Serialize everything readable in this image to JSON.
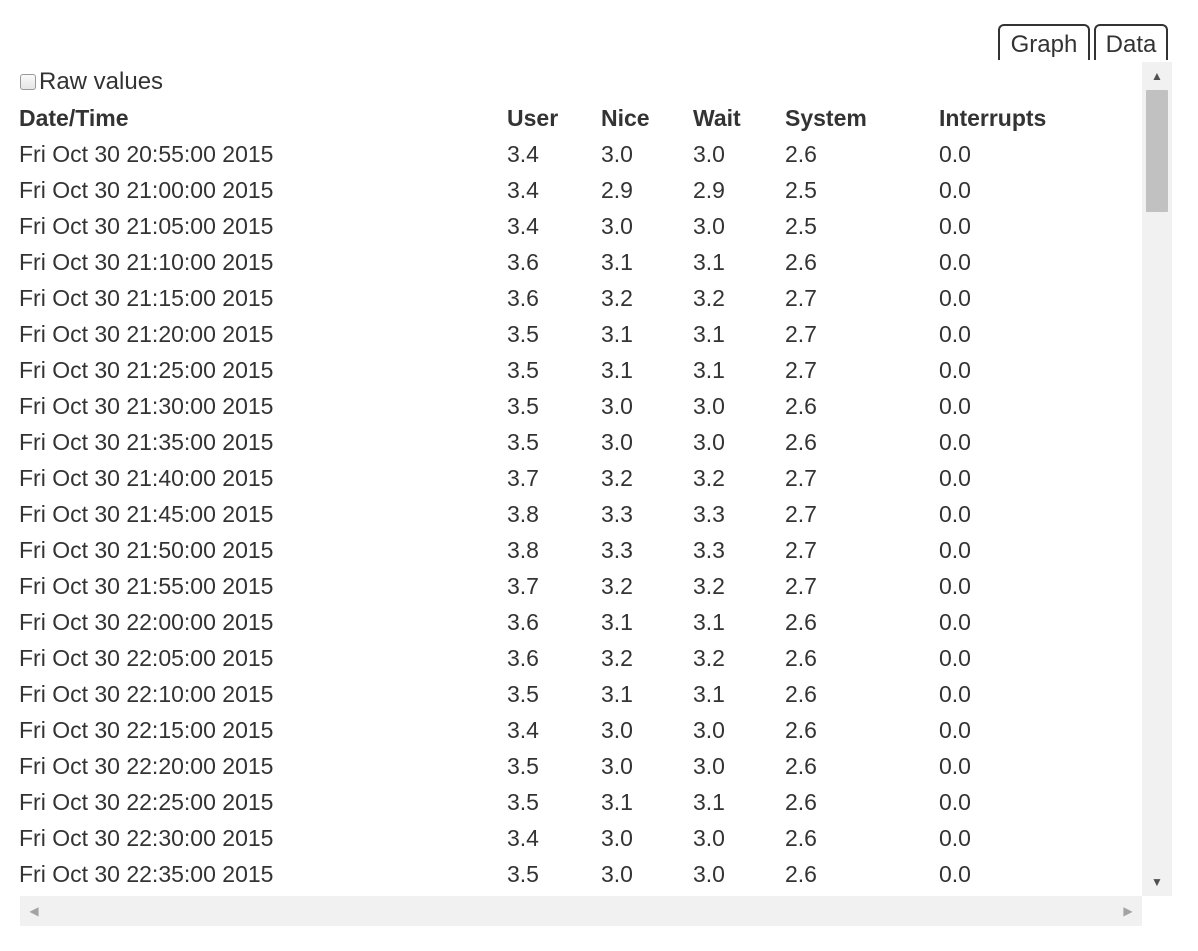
{
  "tabs": {
    "graph_label": "Graph",
    "data_label": "Data"
  },
  "raw_values": {
    "label": "Raw values",
    "checked": false
  },
  "table": {
    "headers": [
      "Date/Time",
      "User",
      "Nice",
      "Wait",
      "System",
      "Interrupts"
    ],
    "rows": [
      [
        "Fri Oct 30 20:55:00 2015",
        "3.4",
        "3.0",
        "3.0",
        "2.6",
        "0.0"
      ],
      [
        "Fri Oct 30 21:00:00 2015",
        "3.4",
        "2.9",
        "2.9",
        "2.5",
        "0.0"
      ],
      [
        "Fri Oct 30 21:05:00 2015",
        "3.4",
        "3.0",
        "3.0",
        "2.5",
        "0.0"
      ],
      [
        "Fri Oct 30 21:10:00 2015",
        "3.6",
        "3.1",
        "3.1",
        "2.6",
        "0.0"
      ],
      [
        "Fri Oct 30 21:15:00 2015",
        "3.6",
        "3.2",
        "3.2",
        "2.7",
        "0.0"
      ],
      [
        "Fri Oct 30 21:20:00 2015",
        "3.5",
        "3.1",
        "3.1",
        "2.7",
        "0.0"
      ],
      [
        "Fri Oct 30 21:25:00 2015",
        "3.5",
        "3.1",
        "3.1",
        "2.7",
        "0.0"
      ],
      [
        "Fri Oct 30 21:30:00 2015",
        "3.5",
        "3.0",
        "3.0",
        "2.6",
        "0.0"
      ],
      [
        "Fri Oct 30 21:35:00 2015",
        "3.5",
        "3.0",
        "3.0",
        "2.6",
        "0.0"
      ],
      [
        "Fri Oct 30 21:40:00 2015",
        "3.7",
        "3.2",
        "3.2",
        "2.7",
        "0.0"
      ],
      [
        "Fri Oct 30 21:45:00 2015",
        "3.8",
        "3.3",
        "3.3",
        "2.7",
        "0.0"
      ],
      [
        "Fri Oct 30 21:50:00 2015",
        "3.8",
        "3.3",
        "3.3",
        "2.7",
        "0.0"
      ],
      [
        "Fri Oct 30 21:55:00 2015",
        "3.7",
        "3.2",
        "3.2",
        "2.7",
        "0.0"
      ],
      [
        "Fri Oct 30 22:00:00 2015",
        "3.6",
        "3.1",
        "3.1",
        "2.6",
        "0.0"
      ],
      [
        "Fri Oct 30 22:05:00 2015",
        "3.6",
        "3.2",
        "3.2",
        "2.6",
        "0.0"
      ],
      [
        "Fri Oct 30 22:10:00 2015",
        "3.5",
        "3.1",
        "3.1",
        "2.6",
        "0.0"
      ],
      [
        "Fri Oct 30 22:15:00 2015",
        "3.4",
        "3.0",
        "3.0",
        "2.6",
        "0.0"
      ],
      [
        "Fri Oct 30 22:20:00 2015",
        "3.5",
        "3.0",
        "3.0",
        "2.6",
        "0.0"
      ],
      [
        "Fri Oct 30 22:25:00 2015",
        "3.5",
        "3.1",
        "3.1",
        "2.6",
        "0.0"
      ],
      [
        "Fri Oct 30 22:30:00 2015",
        "3.4",
        "3.0",
        "3.0",
        "2.6",
        "0.0"
      ],
      [
        "Fri Oct 30 22:35:00 2015",
        "3.5",
        "3.0",
        "3.0",
        "2.6",
        "0.0"
      ]
    ]
  },
  "icons": {
    "scroll_up": "triangle-up-icon",
    "scroll_down": "triangle-down-icon",
    "scroll_left": "triangle-left-icon",
    "scroll_right": "triangle-right-icon"
  }
}
